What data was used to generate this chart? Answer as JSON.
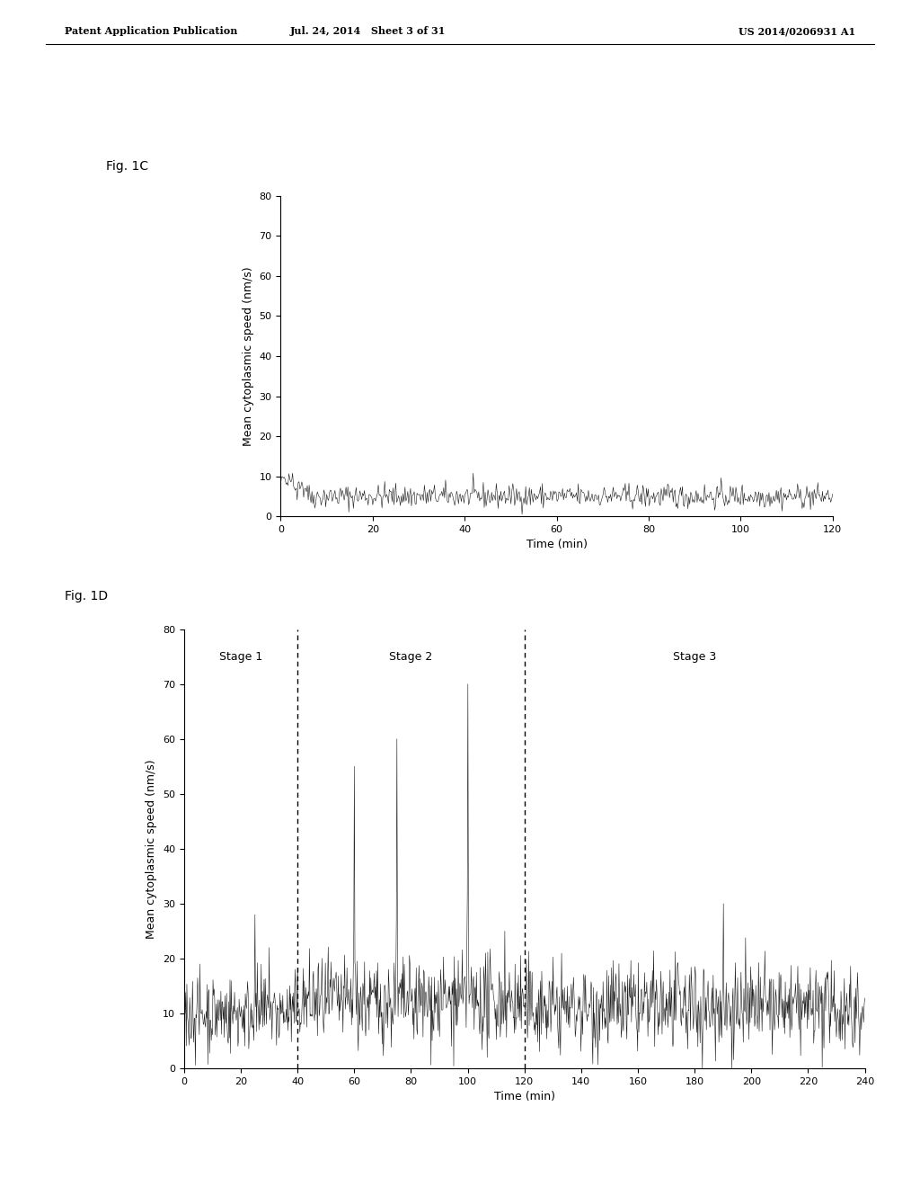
{
  "fig_label_1c": "Fig. 1C",
  "fig_label_1d": "Fig. 1D",
  "header_left": "Patent Application Publication",
  "header_mid": "Jul. 24, 2014   Sheet 3 of 31",
  "header_right": "US 2014/0206931 A1",
  "ylabel": "Mean cytoplasmic speed (nm/s)",
  "xlabel": "Time (min)",
  "chart1c": {
    "ylim": [
      0,
      80
    ],
    "xlim": [
      0,
      120
    ],
    "yticks": [
      0,
      10,
      20,
      30,
      40,
      50,
      60,
      70,
      80
    ],
    "xticks": [
      0,
      20,
      40,
      60,
      80,
      100,
      120
    ],
    "noise_mean": 5.0,
    "noise_std": 1.5
  },
  "chart1d": {
    "ylim": [
      0,
      80
    ],
    "xlim": [
      0,
      240
    ],
    "yticks": [
      0,
      10,
      20,
      30,
      40,
      50,
      60,
      70,
      80
    ],
    "xticks": [
      0,
      20,
      40,
      60,
      80,
      100,
      120,
      140,
      160,
      180,
      200,
      220,
      240
    ],
    "vline1_x": 40,
    "vline2_x": 120,
    "stage1_label": "Stage 1",
    "stage2_label": "Stage 2",
    "stage3_label": "Stage 3"
  },
  "background_color": "#ffffff",
  "line_color": "#1a1a1a",
  "font_size_label": 9,
  "font_size_header": 8,
  "font_size_fig": 10,
  "font_size_axis": 8,
  "font_size_stage": 9
}
